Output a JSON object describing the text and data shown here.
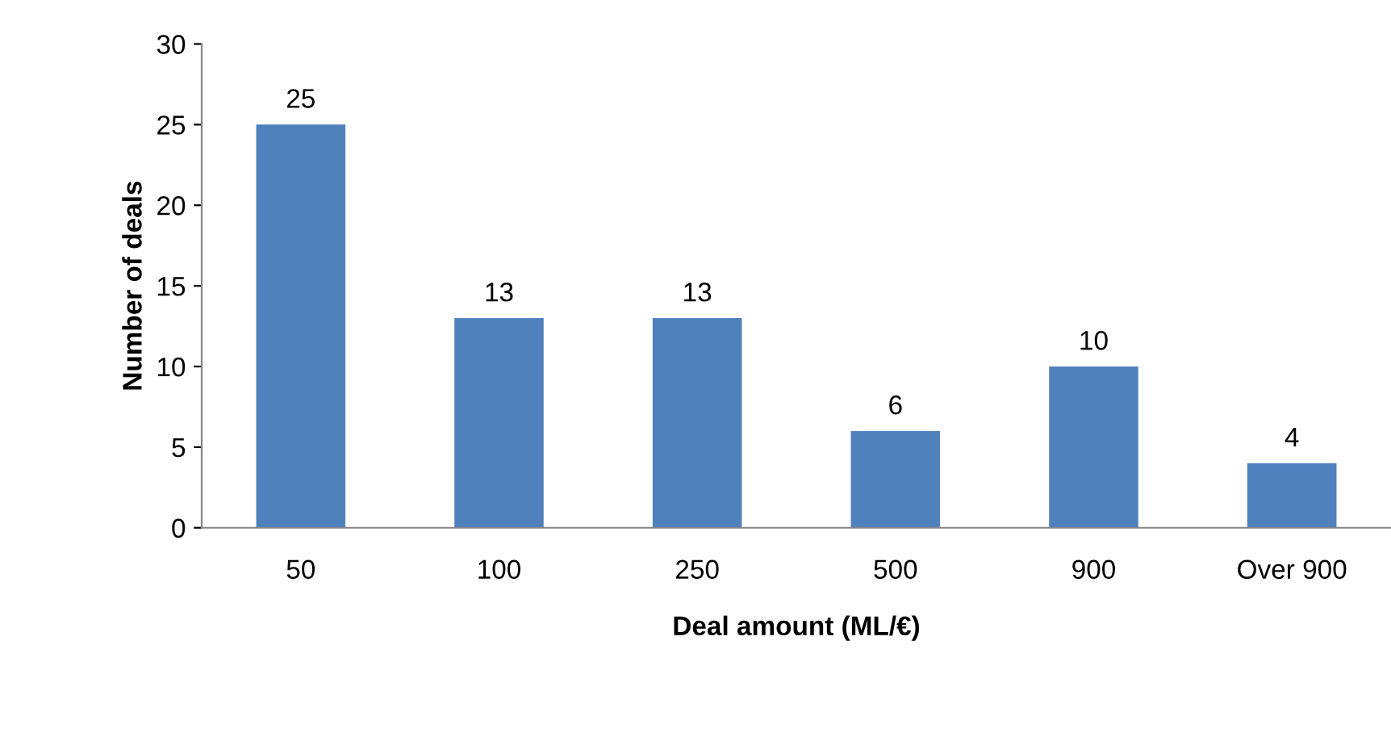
{
  "chart_data": {
    "type": "bar",
    "xlabel": "Deal amount (ML/€)",
    "ylabel": "Number of deals",
    "categories": [
      "50",
      "100",
      "250",
      "500",
      "900",
      "Over 900"
    ],
    "values": [
      25,
      13,
      13,
      6,
      10,
      4
    ],
    "color": "#4f81bd",
    "ylim": [
      0,
      30
    ],
    "yticks": [
      0,
      5,
      10,
      15,
      20,
      25,
      30
    ],
    "grid": false,
    "data_labels": true
  }
}
